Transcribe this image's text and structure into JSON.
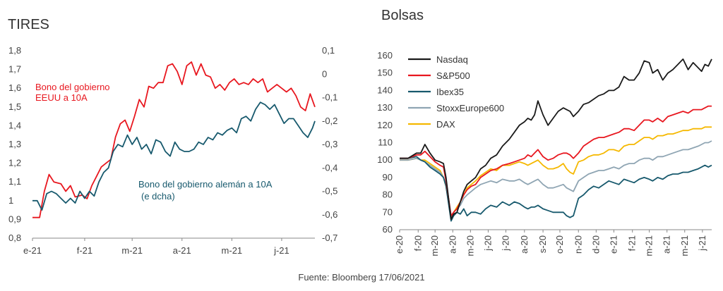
{
  "source": "Fuente: Bloomberg 17/06/2021",
  "chart_data": [
    {
      "type": "line",
      "title": "TIRES",
      "y_left": {
        "ylim": [
          0.8,
          1.8
        ],
        "ticks": [
          "0,8",
          "0,9",
          "1",
          "1,1",
          "1,2",
          "1,3",
          "1,4",
          "1,5",
          "1,6",
          "1,7",
          "1,8"
        ]
      },
      "y_right": {
        "ylim": [
          -0.7,
          0.1
        ],
        "ticks": [
          "-0,7",
          "-0,6",
          "-0,5",
          "-0,4",
          "-0,3",
          "-0,2",
          "-0,1",
          "0",
          "0,1"
        ]
      },
      "x_ticks": [
        "e-21",
        "f-21",
        "m-21",
        "a-21",
        "m-21",
        "j-21"
      ],
      "x_range": [
        0,
        119
      ],
      "x_tick_positions": [
        0,
        22,
        42,
        63,
        84,
        105
      ],
      "series": [
        {
          "name": "Bono del gobierno EEUU a 10A",
          "axis": "left",
          "color": "#e8171f",
          "label_lines": [
            "Bono del gobierno",
            "EEUU a 10A"
          ],
          "x": [
            0,
            3,
            5,
            7,
            9,
            12,
            14,
            16,
            18,
            21,
            23,
            25,
            27,
            29,
            31,
            33,
            35,
            37,
            39,
            41,
            43,
            45,
            47,
            49,
            51,
            53,
            55,
            57,
            59,
            61,
            63,
            65,
            67,
            69,
            71,
            73,
            75,
            77,
            79,
            81,
            83,
            85,
            87,
            89,
            91,
            93,
            95,
            97,
            99,
            101,
            103,
            105,
            107,
            109,
            111,
            113,
            115,
            117,
            119
          ],
          "values": [
            0.91,
            0.91,
            1.05,
            1.14,
            1.1,
            1.09,
            1.05,
            1.08,
            1.02,
            1.03,
            1.01,
            1.08,
            1.13,
            1.18,
            1.2,
            1.22,
            1.34,
            1.41,
            1.43,
            1.37,
            1.45,
            1.54,
            1.5,
            1.61,
            1.6,
            1.63,
            1.63,
            1.72,
            1.73,
            1.69,
            1.62,
            1.72,
            1.74,
            1.67,
            1.73,
            1.67,
            1.66,
            1.6,
            1.62,
            1.59,
            1.63,
            1.65,
            1.62,
            1.63,
            1.62,
            1.65,
            1.63,
            1.65,
            1.58,
            1.6,
            1.62,
            1.6,
            1.58,
            1.6,
            1.56,
            1.5,
            1.48,
            1.57,
            1.5
          ]
        },
        {
          "name": "Bono del gobierno alemán a 10A",
          "axis": "right",
          "color": "#17596d",
          "label_lines": [
            "Bono del gobierno alemán a 10A",
            "(e dcha)"
          ],
          "x": [
            0,
            2,
            4,
            6,
            8,
            10,
            12,
            14,
            16,
            18,
            20,
            22,
            24,
            26,
            28,
            30,
            32,
            34,
            36,
            38,
            40,
            42,
            44,
            46,
            48,
            50,
            52,
            54,
            56,
            58,
            60,
            62,
            64,
            66,
            68,
            70,
            72,
            74,
            76,
            78,
            80,
            82,
            84,
            86,
            88,
            90,
            92,
            94,
            96,
            98,
            100,
            102,
            104,
            106,
            108,
            110,
            112,
            114,
            116,
            118,
            119
          ],
          "values": [
            -0.54,
            -0.54,
            -0.58,
            -0.51,
            -0.5,
            -0.51,
            -0.53,
            -0.55,
            -0.53,
            -0.55,
            -0.5,
            -0.53,
            -0.5,
            -0.52,
            -0.46,
            -0.42,
            -0.4,
            -0.33,
            -0.3,
            -0.31,
            -0.26,
            -0.3,
            -0.27,
            -0.32,
            -0.3,
            -0.34,
            -0.28,
            -0.29,
            -0.33,
            -0.35,
            -0.29,
            -0.32,
            -0.33,
            -0.33,
            -0.32,
            -0.29,
            -0.3,
            -0.27,
            -0.28,
            -0.25,
            -0.26,
            -0.24,
            -0.23,
            -0.25,
            -0.19,
            -0.18,
            -0.2,
            -0.15,
            -0.12,
            -0.13,
            -0.15,
            -0.13,
            -0.17,
            -0.21,
            -0.19,
            -0.19,
            -0.22,
            -0.25,
            -0.27,
            -0.23,
            -0.2
          ]
        }
      ]
    },
    {
      "type": "line",
      "title": "Bolsas",
      "ylim": [
        60,
        160
      ],
      "y_ticks": [
        "60",
        "70",
        "80",
        "90",
        "100",
        "110",
        "120",
        "130",
        "140",
        "150",
        "160"
      ],
      "x_ticks": [
        "e-20",
        "f-20",
        "m-20",
        "a-20",
        "m-20",
        "j-20",
        "j-20",
        "a-20",
        "s-20",
        "o-20",
        "n-20",
        "d-20",
        "e-21",
        "f-21",
        "m-21",
        "a-21",
        "m-21",
        "j-21"
      ],
      "x_range": [
        0,
        370
      ],
      "x_tick_positions": [
        0,
        22,
        42,
        63,
        84,
        105,
        126,
        148,
        170,
        190,
        212,
        233,
        254,
        276,
        296,
        317,
        338,
        359
      ],
      "legend": {
        "position": "top-left"
      },
      "series": [
        {
          "name": "Nasdaq",
          "color": "#1a1a1a",
          "x": [
            0,
            10,
            20,
            25,
            30,
            36,
            42,
            48,
            52,
            55,
            58,
            61,
            64,
            68,
            72,
            76,
            80,
            85,
            90,
            96,
            102,
            108,
            115,
            122,
            130,
            136,
            142,
            148,
            152,
            156,
            160,
            164,
            170,
            176,
            182,
            188,
            194,
            198,
            202,
            206,
            212,
            218,
            224,
            230,
            236,
            242,
            248,
            254,
            260,
            266,
            272,
            278,
            284,
            290,
            296,
            300,
            306,
            312,
            318,
            324,
            330,
            336,
            342,
            348,
            354,
            358,
            362,
            366,
            370
          ],
          "values": [
            101,
            101,
            104,
            104,
            109,
            104,
            100,
            99,
            98,
            90,
            78,
            66,
            69,
            70,
            76,
            82,
            86,
            88,
            90,
            95,
            97,
            101,
            103,
            108,
            112,
            116,
            120,
            122,
            124,
            123,
            126,
            134,
            126,
            120,
            124,
            128,
            130,
            129,
            128,
            125,
            128,
            132,
            133,
            135,
            137,
            138,
            140,
            140,
            142,
            148,
            146,
            146,
            150,
            157,
            156,
            150,
            152,
            146,
            150,
            152,
            155,
            158,
            152,
            156,
            153,
            151,
            155,
            154,
            158
          ]
        },
        {
          "name": "S&P500",
          "color": "#e8171f",
          "x": [
            0,
            10,
            20,
            25,
            30,
            36,
            42,
            48,
            52,
            55,
            58,
            61,
            64,
            68,
            72,
            76,
            80,
            85,
            90,
            96,
            102,
            108,
            115,
            122,
            130,
            136,
            142,
            148,
            152,
            156,
            160,
            164,
            170,
            176,
            182,
            188,
            194,
            198,
            202,
            206,
            212,
            218,
            224,
            230,
            236,
            242,
            248,
            254,
            260,
            266,
            272,
            278,
            284,
            290,
            296,
            300,
            306,
            312,
            318,
            324,
            330,
            336,
            342,
            348,
            354,
            358,
            362,
            366,
            370
          ],
          "values": [
            101,
            101,
            103,
            103,
            105,
            102,
            99,
            97,
            96,
            88,
            78,
            68,
            70,
            72,
            76,
            80,
            83,
            85,
            86,
            90,
            92,
            94,
            95,
            97,
            98,
            99,
            100,
            101,
            103,
            102,
            104,
            106,
            102,
            100,
            101,
            103,
            104,
            104,
            103,
            101,
            104,
            108,
            110,
            112,
            113,
            113,
            114,
            115,
            116,
            118,
            118,
            117,
            120,
            123,
            123,
            122,
            124,
            122,
            125,
            126,
            127,
            128,
            127,
            129,
            129,
            129,
            130,
            131,
            131
          ]
        },
        {
          "name": "Ibex35",
          "color": "#17596d",
          "x": [
            0,
            10,
            20,
            25,
            30,
            36,
            42,
            48,
            52,
            55,
            58,
            61,
            64,
            68,
            72,
            76,
            80,
            85,
            90,
            96,
            102,
            108,
            115,
            122,
            130,
            136,
            142,
            148,
            152,
            156,
            160,
            164,
            170,
            176,
            182,
            188,
            194,
            198,
            202,
            206,
            212,
            218,
            224,
            230,
            236,
            242,
            248,
            254,
            260,
            266,
            272,
            278,
            284,
            290,
            296,
            300,
            306,
            312,
            318,
            324,
            330,
            336,
            342,
            348,
            354,
            358,
            362,
            366,
            370
          ],
          "values": [
            101,
            101,
            102,
            100,
            99,
            96,
            94,
            92,
            90,
            85,
            75,
            65,
            68,
            70,
            69,
            72,
            68,
            70,
            70,
            69,
            72,
            74,
            73,
            76,
            74,
            76,
            75,
            73,
            72,
            73,
            73,
            74,
            72,
            71,
            70,
            70,
            70,
            68,
            67,
            68,
            78,
            80,
            83,
            85,
            84,
            86,
            88,
            87,
            86,
            89,
            88,
            87,
            89,
            90,
            89,
            88,
            90,
            89,
            91,
            92,
            92,
            93,
            93,
            94,
            95,
            96,
            97,
            96,
            97
          ]
        },
        {
          "name": "StoxxEurope600",
          "color": "#8fa5b3",
          "x": [
            0,
            10,
            20,
            25,
            30,
            36,
            42,
            48,
            52,
            55,
            58,
            61,
            64,
            68,
            72,
            76,
            80,
            85,
            90,
            96,
            102,
            108,
            115,
            122,
            130,
            136,
            142,
            148,
            152,
            156,
            160,
            164,
            170,
            176,
            182,
            188,
            194,
            198,
            202,
            206,
            212,
            218,
            224,
            230,
            236,
            242,
            248,
            254,
            260,
            266,
            272,
            278,
            284,
            290,
            296,
            300,
            306,
            312,
            318,
            324,
            330,
            336,
            342,
            348,
            354,
            358,
            362,
            366,
            370
          ],
          "values": [
            100,
            100,
            101,
            100,
            99,
            97,
            95,
            93,
            90,
            86,
            76,
            67,
            70,
            72,
            74,
            78,
            80,
            82,
            84,
            86,
            87,
            88,
            87,
            89,
            88,
            88,
            89,
            87,
            86,
            87,
            88,
            89,
            86,
            84,
            84,
            85,
            86,
            84,
            83,
            82,
            88,
            90,
            92,
            93,
            94,
            94,
            95,
            96,
            95,
            97,
            98,
            98,
            100,
            101,
            101,
            100,
            102,
            102,
            103,
            104,
            105,
            106,
            106,
            107,
            108,
            109,
            110,
            110,
            111
          ]
        },
        {
          "name": "DAX",
          "color": "#f5b800",
          "x": [
            0,
            10,
            20,
            25,
            30,
            36,
            42,
            48,
            52,
            55,
            58,
            61,
            64,
            68,
            72,
            76,
            80,
            85,
            90,
            96,
            102,
            108,
            115,
            122,
            130,
            136,
            142,
            148,
            152,
            156,
            160,
            164,
            170,
            176,
            182,
            188,
            194,
            198,
            202,
            206,
            212,
            218,
            224,
            230,
            236,
            242,
            248,
            254,
            260,
            266,
            272,
            278,
            284,
            290,
            296,
            300,
            306,
            312,
            318,
            324,
            330,
            336,
            342,
            348,
            354,
            358,
            362,
            366,
            370
          ],
          "values": [
            100,
            100,
            101,
            100,
            100,
            98,
            96,
            94,
            90,
            85,
            76,
            66,
            70,
            73,
            76,
            80,
            84,
            86,
            88,
            91,
            93,
            95,
            94,
            97,
            97,
            98,
            99,
            98,
            97,
            98,
            99,
            100,
            97,
            95,
            95,
            96,
            98,
            95,
            93,
            92,
            99,
            100,
            102,
            103,
            103,
            104,
            106,
            106,
            105,
            108,
            109,
            109,
            111,
            113,
            113,
            112,
            114,
            114,
            115,
            115,
            116,
            117,
            117,
            118,
            118,
            118,
            119,
            119,
            119
          ]
        }
      ]
    }
  ]
}
